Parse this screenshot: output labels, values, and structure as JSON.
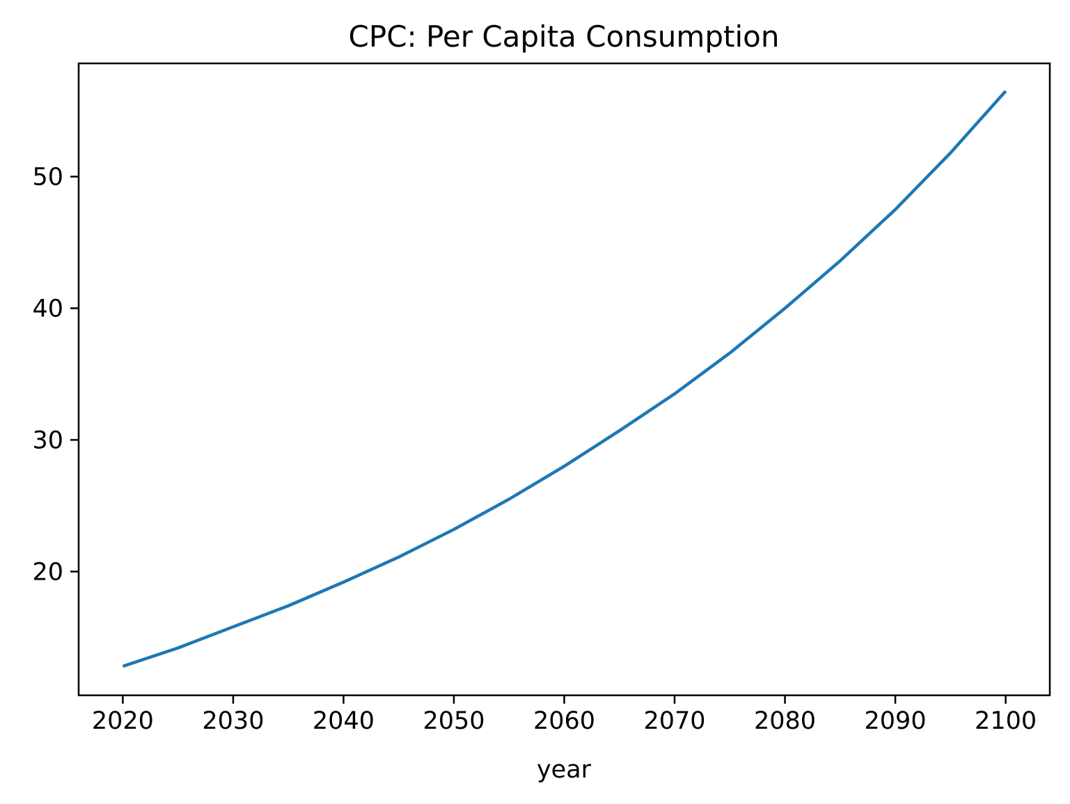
{
  "chart_data": {
    "type": "line",
    "title": "CPC: Per Capita Consumption",
    "xlabel": "year",
    "ylabel": "",
    "x": [
      2020,
      2025,
      2030,
      2035,
      2040,
      2045,
      2050,
      2055,
      2060,
      2065,
      2070,
      2075,
      2080,
      2085,
      2090,
      2095,
      2100
    ],
    "series": [
      {
        "name": "",
        "color": "#1f77b4",
        "values": [
          12.8,
          14.2,
          15.8,
          17.4,
          19.2,
          21.1,
          23.2,
          25.5,
          28.0,
          30.7,
          33.5,
          36.6,
          40.0,
          43.6,
          47.5,
          51.8,
          56.5
        ]
      }
    ],
    "xlim": [
      2016,
      2104
    ],
    "ylim": [
      10.6,
      58.6
    ],
    "xticks": [
      2020,
      2030,
      2040,
      2050,
      2060,
      2070,
      2080,
      2090,
      2100
    ],
    "yticks": [
      20,
      30,
      40,
      50
    ],
    "xtick_labels": [
      "2020",
      "2030",
      "2040",
      "2050",
      "2060",
      "2070",
      "2080",
      "2090",
      "2100"
    ],
    "ytick_labels": [
      "20",
      "30",
      "40",
      "50"
    ],
    "grid": false,
    "legend": "none"
  }
}
